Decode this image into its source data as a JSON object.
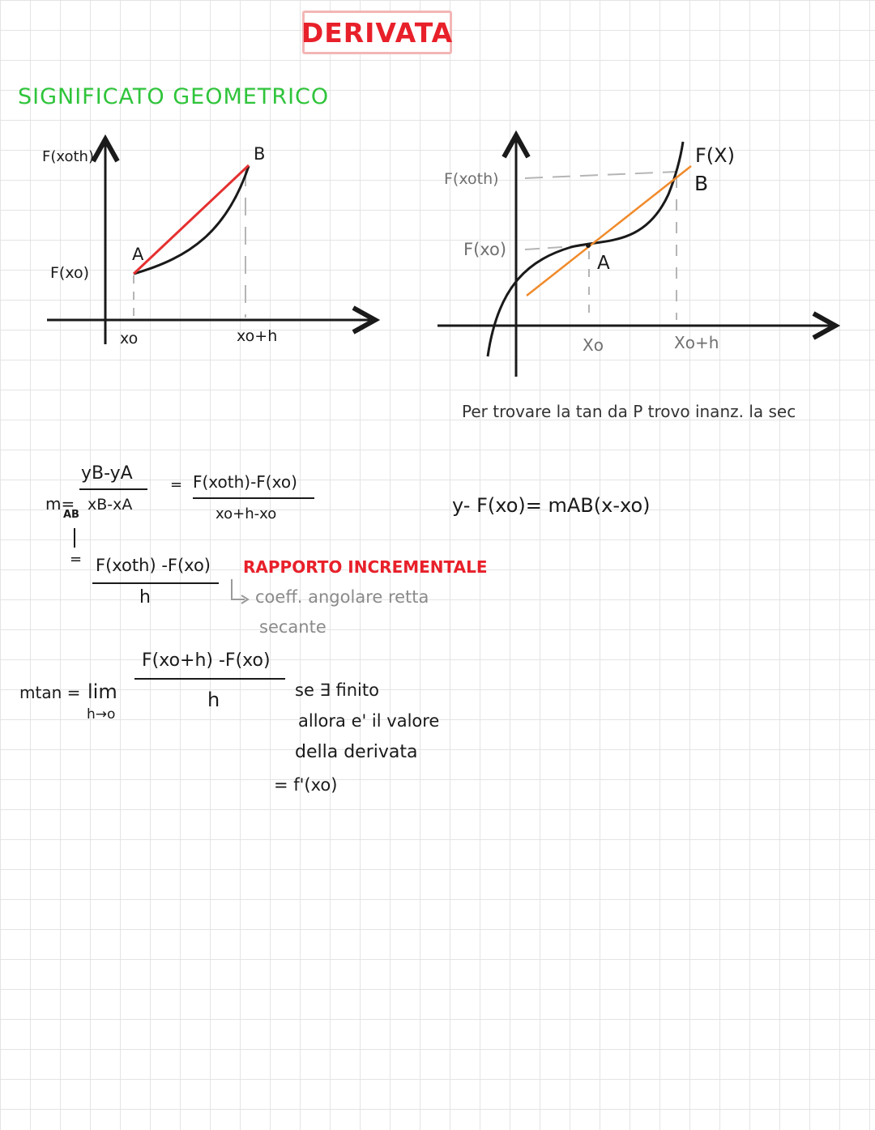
{
  "title": "DERIVATA",
  "section_title": "SIGNIFICATO GEOMETRICO",
  "graph_left": {
    "y_label_top": "F(xoth)",
    "y_label_bottom": "F(xo)",
    "point_a": "A",
    "point_b": "B",
    "x_label_1": "xo",
    "x_label_2": "xo+h"
  },
  "graph_right": {
    "y_label_top": "F(xoth)",
    "y_label_bottom": "F(xo)",
    "curve_label": "F(X)",
    "point_b": "B",
    "point_a": "A",
    "x_label_1": "Xo",
    "x_label_2": "Xo+h",
    "note": "Per trovare la tan da P trovo inanz. la sec"
  },
  "formulas": {
    "slope_label": "m=",
    "slope_sub": "AB",
    "ratio_num": "yB-yA",
    "ratio_den": "xB-xA",
    "equals": "=",
    "fx_num": "F(xoth)-F(xo)",
    "fx_den": "xo+h-xo",
    "incr_num": "F(xoth) -F(xo)",
    "incr_den": "h",
    "incr_label": "RAPPORTO  INCREMENTALE",
    "incr_note_1": "coeff. angolare retta",
    "incr_note_2": "secante",
    "tangent_line": "y- F(xo)= mAB(x-xo)",
    "mtan_label": "mtan =",
    "lim": "lim",
    "lim_sub": "h→o",
    "lim_num": "F(xo+h) -F(xo)",
    "lim_den": "h",
    "note_1": "se ∃ finito",
    "note_2": "allora e' il valore",
    "note_3": "della derivata",
    "note_4": "= f'(xo)"
  },
  "colors": {
    "title_red": "#e8202a",
    "section_green": "#2fc43b",
    "secant_red": "#e53030",
    "tangent_orange": "#f08a2a",
    "grid": "#e4e4e4"
  }
}
